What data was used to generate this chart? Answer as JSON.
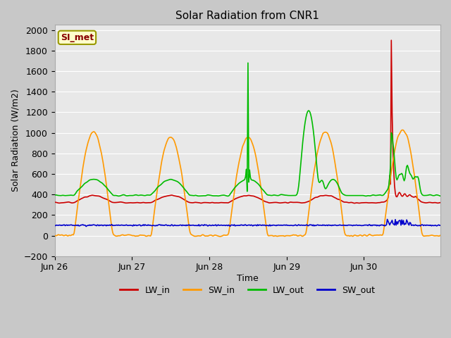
{
  "title": "Solar Radiation from CNR1",
  "xlabel": "Time",
  "ylabel": "Solar Radiation (W/m2)",
  "ylim": [
    -200,
    2050
  ],
  "yticks": [
    -200,
    0,
    200,
    400,
    600,
    800,
    1000,
    1200,
    1400,
    1600,
    1800,
    2000
  ],
  "fig_bg": "#c8c8c8",
  "plot_bg": "#e8e8e8",
  "legend_label": "SI_met",
  "legend_bg": "#ffffcc",
  "legend_border": "#999900",
  "series_colors": {
    "LW_in": "#cc0000",
    "SW_in": "#ff9900",
    "LW_out": "#00bb00",
    "SW_out": "#0000cc"
  },
  "line_width": 1.2,
  "x_ticks_labels": [
    "Jun 26",
    "Jun 27",
    "Jun 28",
    "Jun 29",
    "Jun 30"
  ],
  "period_pts": 96
}
